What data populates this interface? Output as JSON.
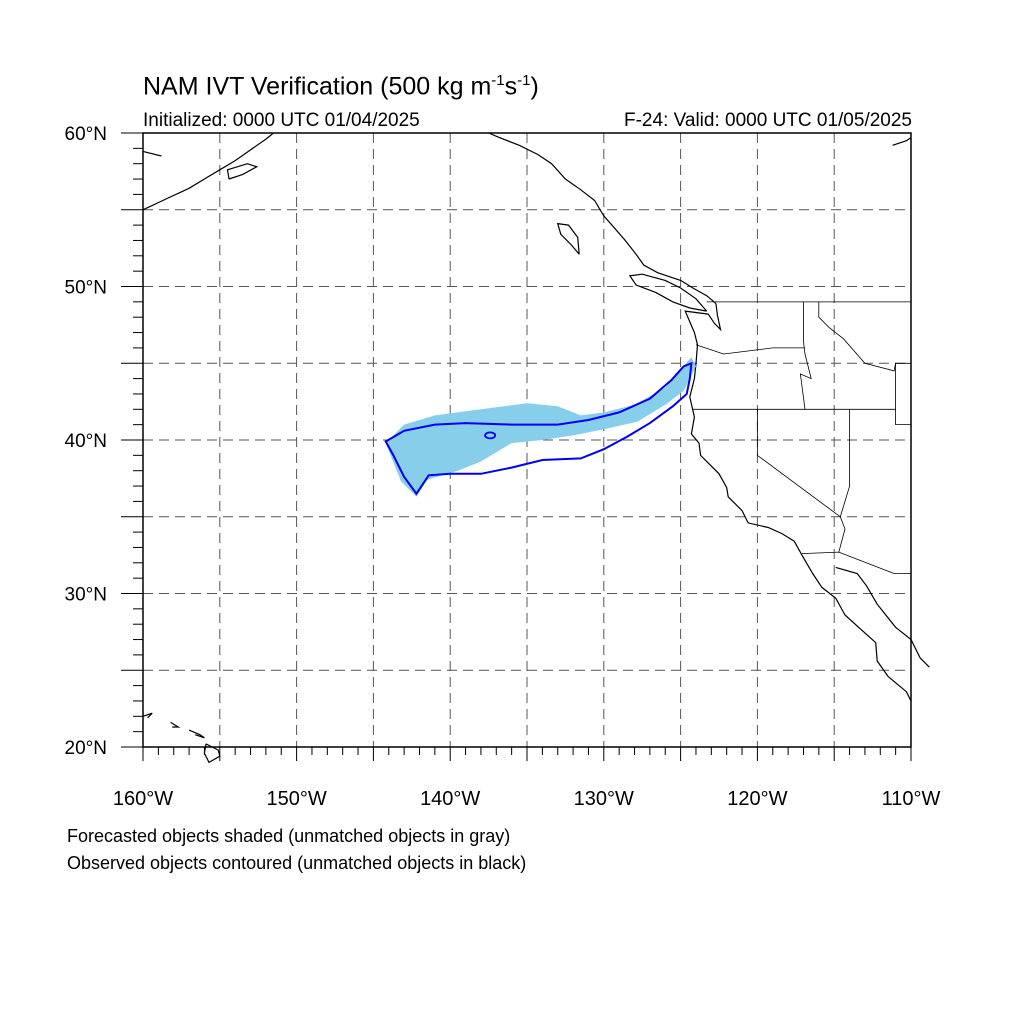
{
  "header": {
    "title_prefix": "NAM IVT Verification (500 kg m",
    "title_exp1": "-1",
    "title_mid": "s",
    "title_exp2": "-1",
    "title_suffix": ")",
    "initialized": "Initialized: 0000 UTC 01/04/2025",
    "valid": "F-24: Valid: 0000 UTC 01/05/2025"
  },
  "map": {
    "projection": "cylindrical-equidistant",
    "lon_range": [
      -160,
      -110
    ],
    "lat_range": [
      20,
      60
    ],
    "grid_lines": "dashed",
    "lat_ticks": [
      {
        "value": 20,
        "label": "20°N"
      },
      {
        "value": 30,
        "label": "30°N"
      },
      {
        "value": 40,
        "label": "40°N"
      },
      {
        "value": 50,
        "label": "50°N"
      },
      {
        "value": 60,
        "label": "60°N"
      }
    ],
    "lon_ticks": [
      {
        "value": -160,
        "label": "160°W"
      },
      {
        "value": -150,
        "label": "150°W"
      },
      {
        "value": -140,
        "label": "140°W"
      },
      {
        "value": -130,
        "label": "130°W"
      },
      {
        "value": -120,
        "label": "120°W"
      },
      {
        "value": -110,
        "label": "110°W"
      }
    ],
    "grid_lon": [
      -155,
      -150,
      -145,
      -140,
      -135,
      -130,
      -125,
      -120,
      -115
    ],
    "grid_lat": [
      25,
      30,
      35,
      40,
      45,
      50,
      55
    ]
  },
  "chart_data": {
    "type": "map-object-verification",
    "colors": {
      "forecast_fill": "#87ceeb",
      "observed_contour": "#0000ee",
      "coastline": "#000000"
    },
    "forecast_object": [
      [
        -144.2,
        39.8
      ],
      [
        -143.0,
        41.0
      ],
      [
        -141.0,
        41.6
      ],
      [
        -138.0,
        42.0
      ],
      [
        -135.0,
        42.4
      ],
      [
        -133.0,
        42.2
      ],
      [
        -131.5,
        41.6
      ],
      [
        -130.0,
        41.8
      ],
      [
        -128.0,
        42.3
      ],
      [
        -126.0,
        43.4
      ],
      [
        -125.0,
        44.6
      ],
      [
        -124.3,
        45.4
      ],
      [
        -124.0,
        44.8
      ],
      [
        -124.8,
        43.2
      ],
      [
        -126.0,
        42.3
      ],
      [
        -127.8,
        41.2
      ],
      [
        -130.0,
        40.7
      ],
      [
        -132.0,
        40.3
      ],
      [
        -134.0,
        40.0
      ],
      [
        -136.0,
        39.8
      ],
      [
        -138.0,
        38.6
      ],
      [
        -139.5,
        38.0
      ],
      [
        -141.5,
        37.4
      ],
      [
        -142.2,
        36.3
      ],
      [
        -143.2,
        37.3
      ],
      [
        -143.8,
        38.8
      ]
    ],
    "observed_object": [
      [
        -144.2,
        39.9
      ],
      [
        -143.0,
        40.6
      ],
      [
        -141.0,
        41.0
      ],
      [
        -139.0,
        41.1
      ],
      [
        -136.0,
        41.0
      ],
      [
        -133.0,
        41.0
      ],
      [
        -131.0,
        41.3
      ],
      [
        -129.0,
        41.8
      ],
      [
        -127.0,
        42.7
      ],
      [
        -125.6,
        43.9
      ],
      [
        -124.8,
        44.8
      ],
      [
        -124.3,
        45.0
      ],
      [
        -124.4,
        44.0
      ],
      [
        -124.6,
        43.0
      ],
      [
        -125.5,
        42.2
      ],
      [
        -127.0,
        41.1
      ],
      [
        -128.5,
        40.2
      ],
      [
        -130.0,
        39.4
      ],
      [
        -131.5,
        38.8
      ],
      [
        -134.0,
        38.7
      ],
      [
        -136.0,
        38.2
      ],
      [
        -138.0,
        37.8
      ],
      [
        -140.0,
        37.8
      ],
      [
        -141.4,
        37.7
      ],
      [
        -142.2,
        36.5
      ],
      [
        -143.0,
        37.6
      ],
      [
        -143.7,
        39.0
      ]
    ],
    "observed_small_contour_center": [
      -137.4,
      40.3
    ]
  },
  "footer": {
    "note1": "Forecasted objects shaded (unmatched objects in gray)",
    "note2": "Observed objects contoured (unmatched objects in black)"
  }
}
